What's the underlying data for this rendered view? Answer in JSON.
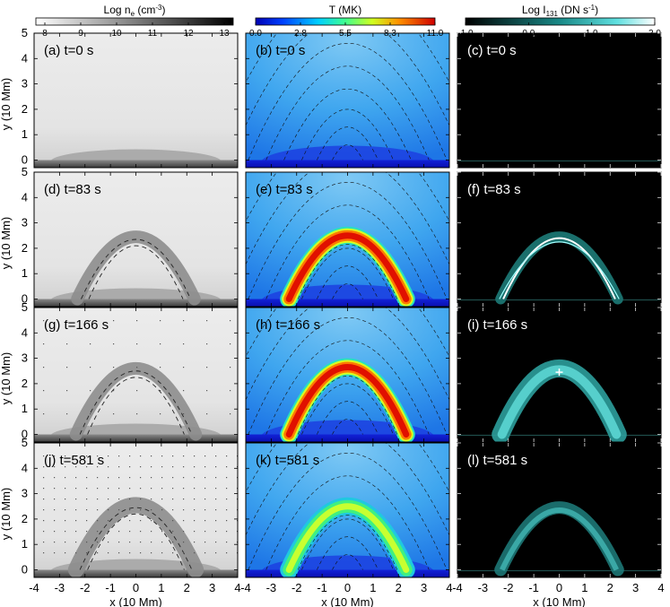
{
  "chart_data": {
    "type": "heatmap",
    "colorbars": [
      {
        "title": "Log n",
        "sub": "e",
        "unit": " (cm",
        "sup": "-3",
        "close": ")",
        "ticks": [
          "8",
          "9",
          "10",
          "11",
          "12",
          "13"
        ],
        "cmap": "gray"
      },
      {
        "title": "T (MK)",
        "ticks": [
          "0.0",
          "2.8",
          "5.5",
          "8.3",
          "11.0"
        ],
        "cmap": "jet"
      },
      {
        "title": "Log I",
        "sub": "131",
        "unit": " (DN s",
        "sup": "-1",
        "close": ")",
        "ticks": [
          "-1.0",
          "0.0",
          "1.0",
          "2.0"
        ],
        "cmap": "cyan"
      }
    ],
    "xlabel": "x (10 Mm)",
    "ylabel": "y (10 Mm)",
    "xlim": [
      -4,
      4
    ],
    "ylim": [
      -0.3,
      5
    ],
    "xticks": [
      "-4",
      "-3",
      "-2",
      "-1",
      "0",
      "1",
      "2",
      "3",
      "4"
    ],
    "yticks": [
      "0",
      "1",
      "2",
      "3",
      "4",
      "5"
    ],
    "panels": [
      {
        "label": "(a) t=0 s",
        "quantity": "density",
        "time": 0
      },
      {
        "label": "(b) t=0 s",
        "quantity": "temperature",
        "time": 0
      },
      {
        "label": "(c) t=0 s",
        "quantity": "intensity",
        "time": 0
      },
      {
        "label": "(d) t=83 s",
        "quantity": "density",
        "time": 83
      },
      {
        "label": "(e) t=83 s",
        "quantity": "temperature",
        "time": 83
      },
      {
        "label": "(f) t=83 s",
        "quantity": "intensity",
        "time": 83
      },
      {
        "label": "(g) t=166 s",
        "quantity": "density",
        "time": 166
      },
      {
        "label": "(h) t=166 s",
        "quantity": "temperature",
        "time": 166
      },
      {
        "label": "(i) t=166 s",
        "quantity": "intensity",
        "time": 166
      },
      {
        "label": "(j) t=581 s",
        "quantity": "density",
        "time": 581
      },
      {
        "label": "(k) t=581 s",
        "quantity": "temperature",
        "time": 581
      },
      {
        "label": "(l) t=581 s",
        "quantity": "intensity",
        "time": 581
      }
    ]
  }
}
